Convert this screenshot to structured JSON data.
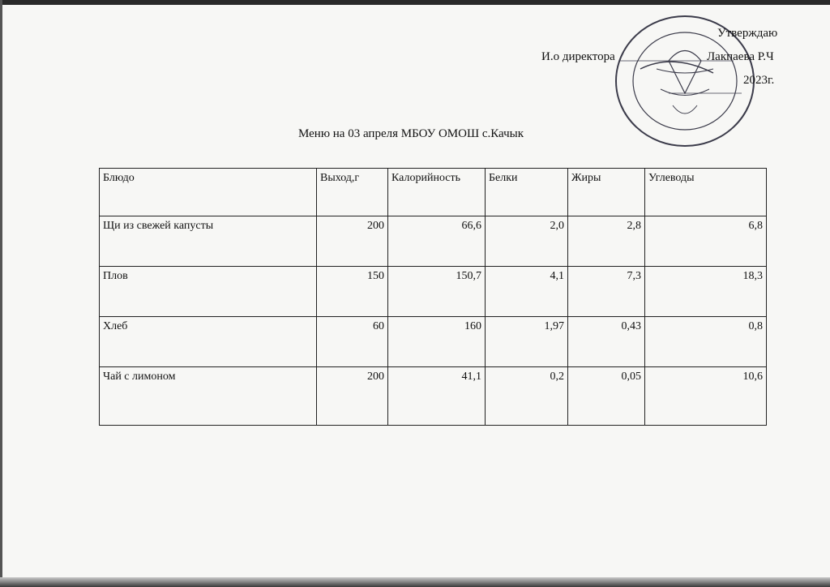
{
  "approval": {
    "approve_label": "Утверждаю",
    "position": "И.о директора",
    "name": "Лакпаева Р.Ч",
    "year": "2023г."
  },
  "title": "Меню на 03 апреля МБОУ ОМОШ с.Качык",
  "table": {
    "headers": [
      "Блюдо",
      "Выход,г",
      "Калорийность",
      "Белки",
      "Жиры",
      "Углеводы"
    ],
    "rows": [
      [
        "Щи из свежей капусты",
        "200",
        "66,6",
        "2,0",
        "2,8",
        "6,8"
      ],
      [
        "Плов",
        "150",
        "150,7",
        "4,1",
        "7,3",
        "18,3"
      ],
      [
        "Хлеб",
        "60",
        "160",
        "1,97",
        "0,43",
        "0,8"
      ],
      [
        "Чай с лимоном",
        "200",
        "41,1",
        "0,2",
        "0,05",
        "10,6"
      ]
    ]
  },
  "stamp": {
    "color": "#3b3b4a"
  }
}
